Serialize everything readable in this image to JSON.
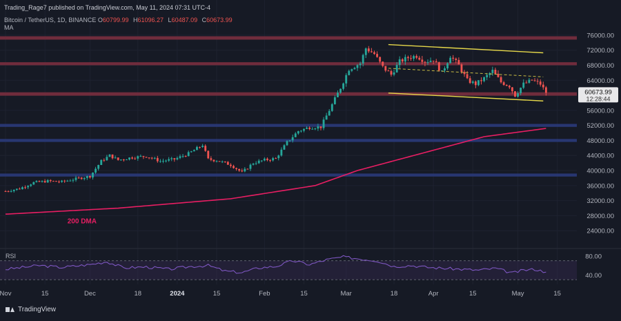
{
  "header": {
    "publisher": "Trading_Rage7 published on TradingView.com, May 11, 2024 07:31 UTC-4",
    "symbol": "Bitcoin / TetherUS, 1D, BINANCE",
    "ohlc": [
      {
        "key": "O",
        "value": "60799.99"
      },
      {
        "key": "H",
        "value": "61096.27"
      },
      {
        "key": "L",
        "value": "60487.09"
      },
      {
        "key": "C",
        "value": "60673.99"
      }
    ],
    "ma_label": "MA"
  },
  "brand": "TradingView",
  "colors": {
    "background": "#161a25",
    "up": "#26a69a",
    "down": "#ef5350",
    "resistance_zone": "#7a2f3f",
    "support_zone": "#2a3a7a",
    "channel": "#e6d84a",
    "ma": "#e91e63",
    "rsi": "#7e57c2"
  },
  "chart_data": {
    "type": "candlestick",
    "y_range": [
      20000,
      78000
    ],
    "y_ticks": [
      "76000.00",
      "72000.00",
      "68000.00",
      "64000.00",
      "60000.00",
      "56000.00",
      "52000.00",
      "48000.00",
      "44000.00",
      "40000.00",
      "36000.00",
      "32000.00",
      "28000.00",
      "24000.00"
    ],
    "y_tick_values": [
      76000,
      72000,
      68000,
      64000,
      60000,
      56000,
      52000,
      48000,
      44000,
      40000,
      36000,
      32000,
      28000,
      24000
    ],
    "x_ticks": [
      {
        "label": "Nov",
        "day": 0
      },
      {
        "label": "15",
        "day": 14
      },
      {
        "label": "Dec",
        "day": 30
      },
      {
        "label": "18",
        "day": 47
      },
      {
        "label": "2024",
        "day": 61
      },
      {
        "label": "15",
        "day": 75
      },
      {
        "label": "Feb",
        "day": 92
      },
      {
        "label": "15",
        "day": 106
      },
      {
        "label": "Mar",
        "day": 121
      },
      {
        "label": "18",
        "day": 138
      },
      {
        "label": "Apr",
        "day": 152
      },
      {
        "label": "15",
        "day": 166
      },
      {
        "label": "May",
        "day": 182
      },
      {
        "label": "15",
        "day": 196
      }
    ],
    "last_price": "60673.99",
    "countdown": "12:28:44",
    "price_path": [
      [
        0,
        34500
      ],
      [
        5,
        35200
      ],
      [
        10,
        36800
      ],
      [
        15,
        37200
      ],
      [
        20,
        37000
      ],
      [
        25,
        37800
      ],
      [
        30,
        38500
      ],
      [
        34,
        42500
      ],
      [
        37,
        44000
      ],
      [
        40,
        42800
      ],
      [
        45,
        43500
      ],
      [
        50,
        43800
      ],
      [
        55,
        42500
      ],
      [
        60,
        43000
      ],
      [
        65,
        44500
      ],
      [
        70,
        46800
      ],
      [
        72,
        43000
      ],
      [
        75,
        42700
      ],
      [
        80,
        41500
      ],
      [
        84,
        39500
      ],
      [
        88,
        42000
      ],
      [
        92,
        42800
      ],
      [
        96,
        43200
      ],
      [
        100,
        47500
      ],
      [
        104,
        50500
      ],
      [
        108,
        51500
      ],
      [
        112,
        51600
      ],
      [
        116,
        57500
      ],
      [
        119,
        62000
      ],
      [
        122,
        67000
      ],
      [
        126,
        68500
      ],
      [
        128,
        72500
      ],
      [
        131,
        71000
      ],
      [
        134,
        67500
      ],
      [
        137,
        65500
      ],
      [
        140,
        69000
      ],
      [
        143,
        70000
      ],
      [
        146,
        70500
      ],
      [
        149,
        69000
      ],
      [
        152,
        69500
      ],
      [
        155,
        66000
      ],
      [
        158,
        70500
      ],
      [
        161,
        68000
      ],
      [
        164,
        64000
      ],
      [
        167,
        63000
      ],
      [
        170,
        64500
      ],
      [
        173,
        66500
      ],
      [
        176,
        63500
      ],
      [
        179,
        62500
      ],
      [
        181,
        60000
      ],
      [
        184,
        63000
      ],
      [
        187,
        64000
      ],
      [
        190,
        63000
      ],
      [
        192,
        60674
      ]
    ],
    "ma_200": [
      [
        0,
        28400
      ],
      [
        40,
        30000
      ],
      [
        80,
        32500
      ],
      [
        110,
        36000
      ],
      [
        125,
        40000
      ],
      [
        150,
        45000
      ],
      [
        170,
        49000
      ],
      [
        192,
        51200
      ]
    ],
    "ma_label": "200 DMA",
    "zones": [
      {
        "name": "resistance",
        "from": 74800,
        "to": 75700
      },
      {
        "name": "resistance",
        "from": 68000,
        "to": 68800
      },
      {
        "name": "resistance",
        "from": 59900,
        "to": 60800
      },
      {
        "name": "support",
        "from": 51600,
        "to": 52400
      },
      {
        "name": "support",
        "from": 47600,
        "to": 48400
      },
      {
        "name": "support",
        "from": 38400,
        "to": 39200
      }
    ],
    "channel": {
      "upper": [
        [
          136,
          73500
        ],
        [
          191,
          71300
        ]
      ],
      "lower": [
        [
          136,
          60600
        ],
        [
          191,
          58500
        ]
      ],
      "mid": [
        [
          136,
          67200
        ],
        [
          191,
          64900
        ]
      ]
    },
    "rsi": {
      "label": "RSI",
      "ticks": [
        "80.00",
        "40.00"
      ],
      "tick_values": [
        80,
        40
      ],
      "upper_band": 70,
      "lower_band": 30,
      "path": [
        [
          0,
          52
        ],
        [
          12,
          60
        ],
        [
          20,
          56
        ],
        [
          30,
          62
        ],
        [
          36,
          68
        ],
        [
          42,
          55
        ],
        [
          50,
          57
        ],
        [
          58,
          52
        ],
        [
          66,
          58
        ],
        [
          72,
          60
        ],
        [
          78,
          48
        ],
        [
          84,
          45
        ],
        [
          90,
          55
        ],
        [
          96,
          58
        ],
        [
          102,
          70
        ],
        [
          108,
          62
        ],
        [
          114,
          72
        ],
        [
          120,
          78
        ],
        [
          126,
          74
        ],
        [
          132,
          70
        ],
        [
          138,
          58
        ],
        [
          144,
          60
        ],
        [
          150,
          56
        ],
        [
          156,
          54
        ],
        [
          162,
          52
        ],
        [
          168,
          50
        ],
        [
          174,
          54
        ],
        [
          180,
          44
        ],
        [
          184,
          50
        ],
        [
          188,
          52
        ],
        [
          192,
          46
        ]
      ]
    }
  }
}
